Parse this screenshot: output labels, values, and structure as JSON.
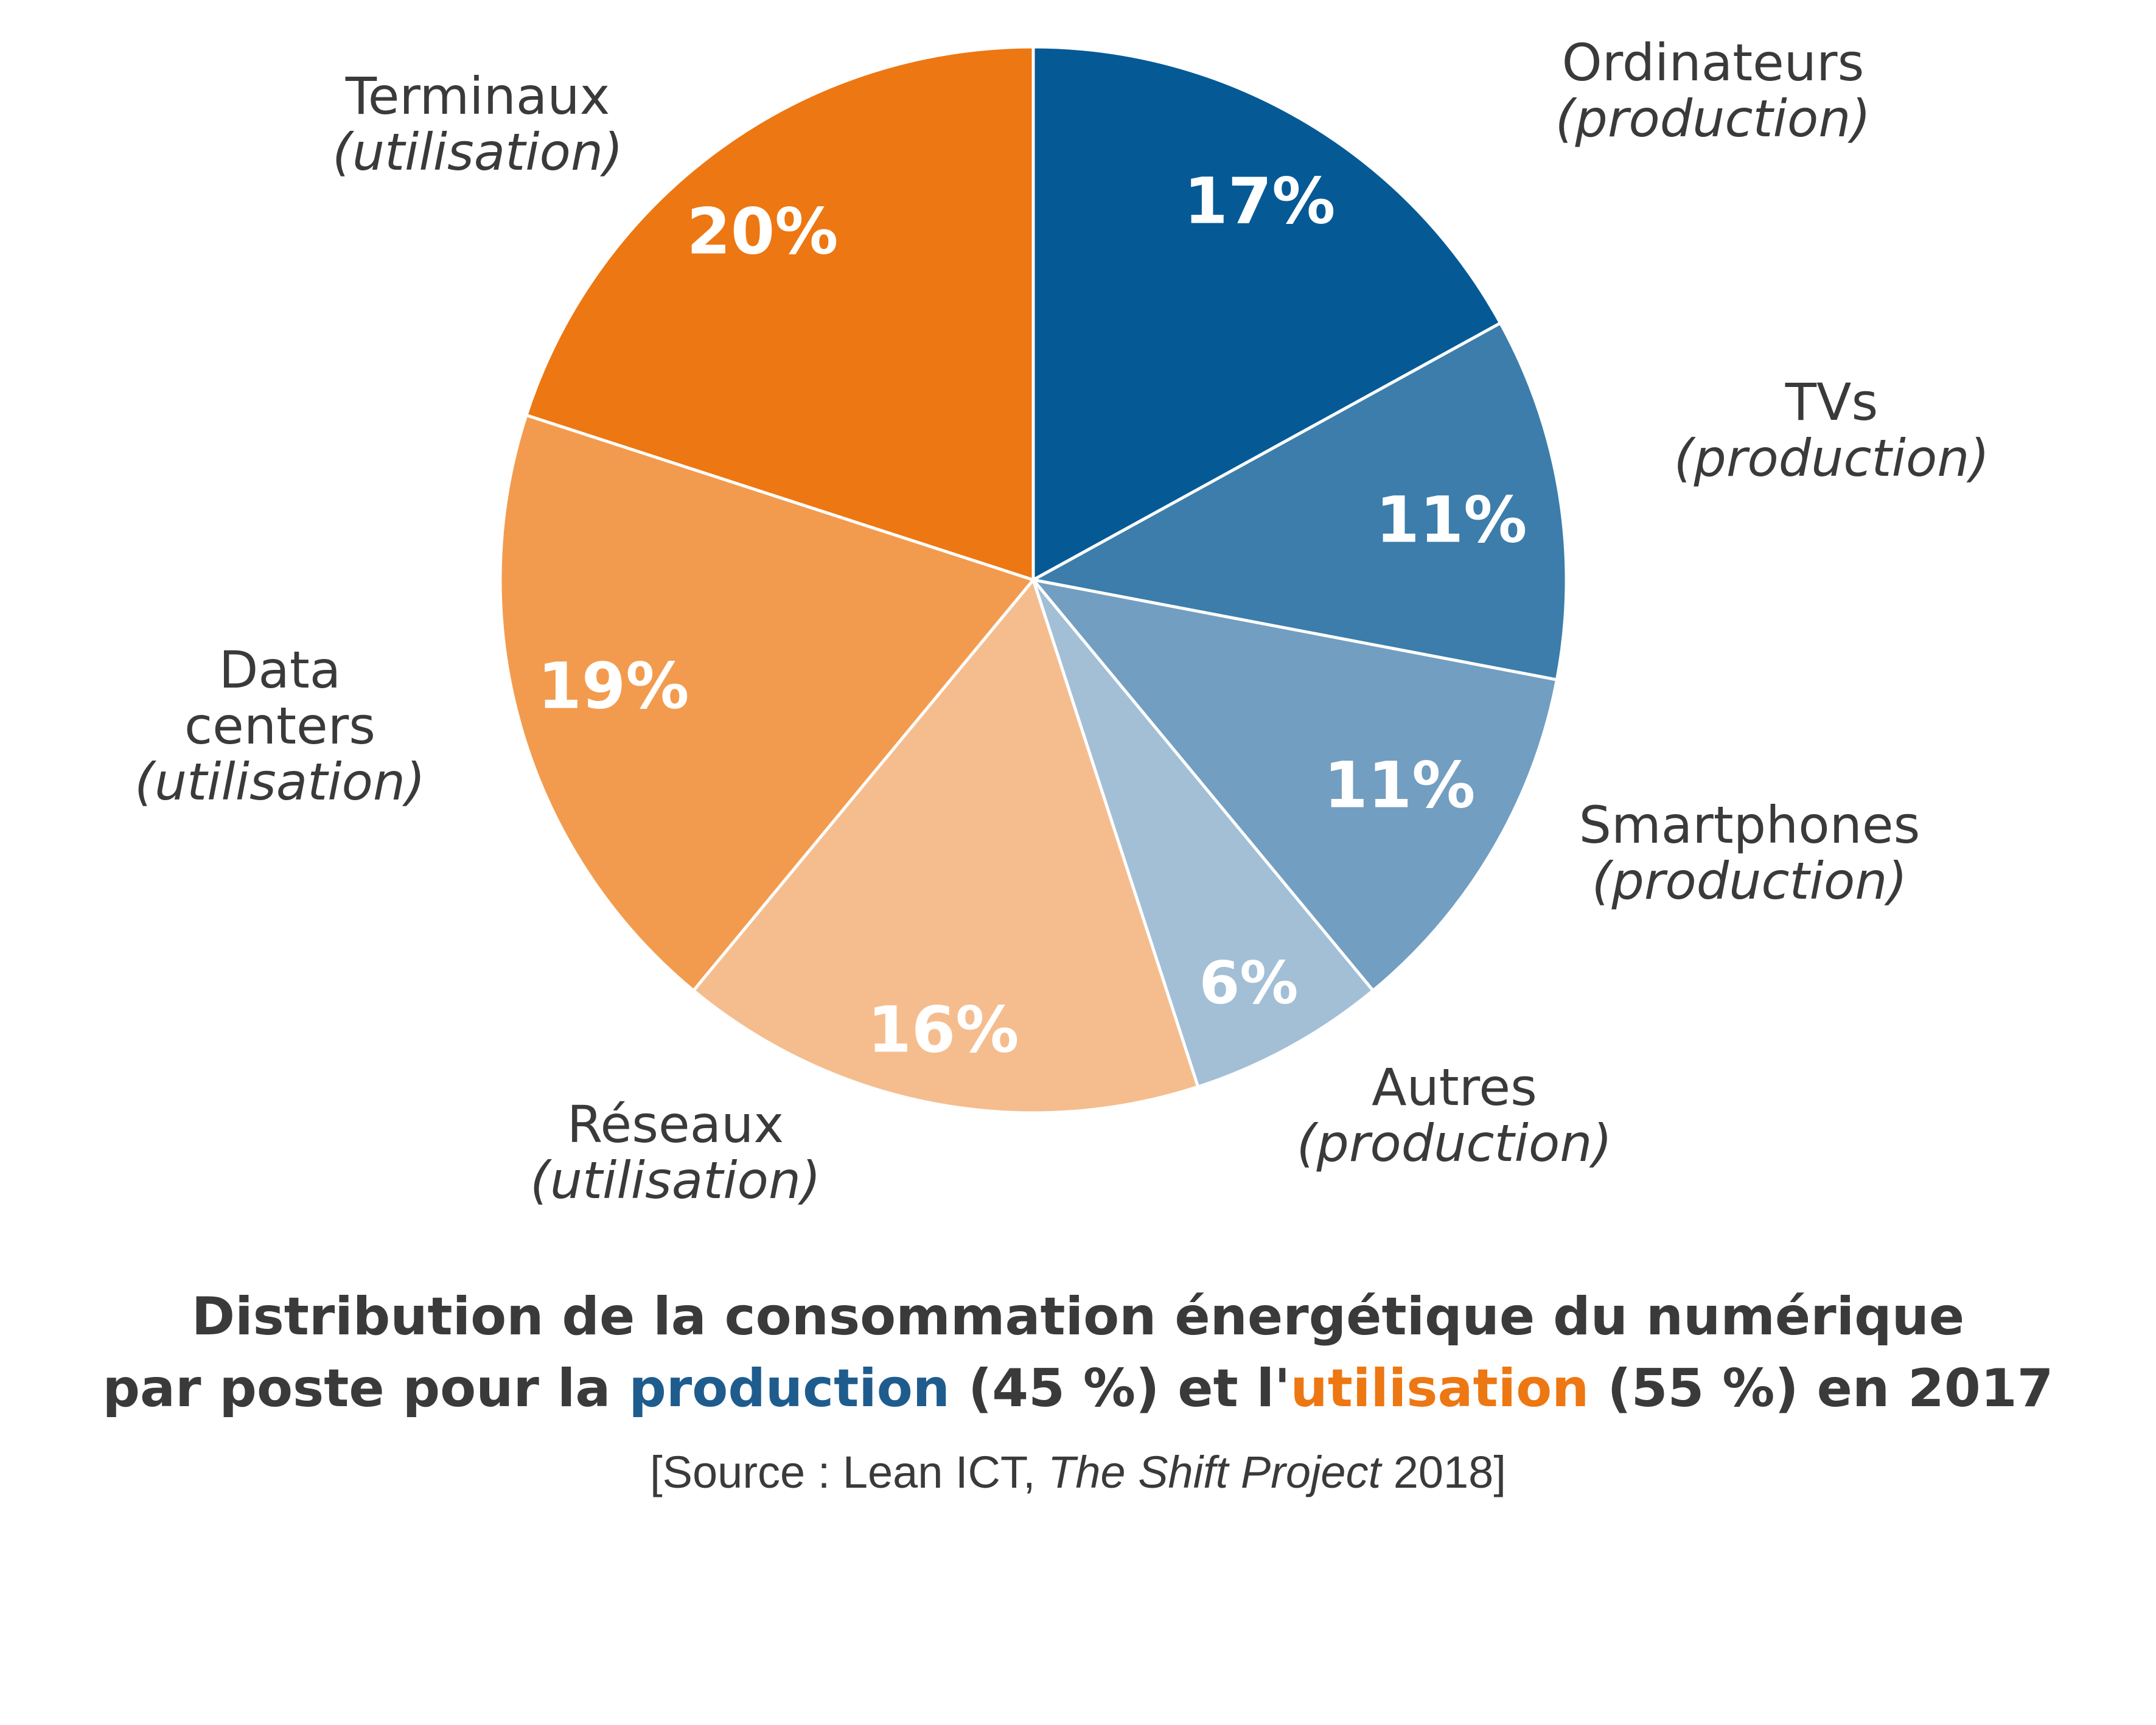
{
  "chart_data": {
    "type": "pie",
    "start_angle_deg": 0,
    "direction": "clockwise",
    "slices": [
      {
        "name": "Ordinateurs",
        "qualifier": "(production)",
        "value": 17,
        "label": "17%",
        "color": "#055a96",
        "group": "production"
      },
      {
        "name": "TVs",
        "qualifier": "(production)",
        "value": 11,
        "label": "11%",
        "color": "#3c7dab",
        "group": "production"
      },
      {
        "name": "Smartphones",
        "qualifier": "(production)",
        "value": 11,
        "label": "11%",
        "color": "#729ec1",
        "group": "production"
      },
      {
        "name": "Autres",
        "qualifier": "(production)",
        "value": 6,
        "label": "6%",
        "color": "#a2bfd6",
        "group": "production"
      },
      {
        "name": "Réseaux",
        "qualifier": "(utilisation)",
        "value": 16,
        "label": "16%",
        "color": "#f5bd8e",
        "group": "utilisation"
      },
      {
        "name": "Data\ncenters",
        "qualifier": "(utilisation)",
        "value": 19,
        "label": "19%",
        "color": "#f29b4e",
        "group": "utilisation"
      },
      {
        "name": "Terminaux",
        "qualifier": "(utilisation)",
        "value": 20,
        "label": "20%",
        "color": "#ed7712",
        "group": "utilisation"
      }
    ],
    "title": {
      "line1": "Distribution de la consommation énergétique du numérique",
      "line2_prefix": "par poste pour la ",
      "line2_production": "production",
      "line2_middle": " (45 %) et l'",
      "line2_utilisation": "utilisation",
      "line2_suffix": " (55 %) en 2017"
    },
    "source": {
      "prefix": "[Source : Lean ICT, ",
      "italic": "The Shift Project",
      "suffix": " 2018]"
    },
    "colors": {
      "production": "#1f5c8e",
      "utilisation": "#ed7712",
      "text": "#3a3a3a",
      "slice_border": "#ffffff"
    }
  }
}
